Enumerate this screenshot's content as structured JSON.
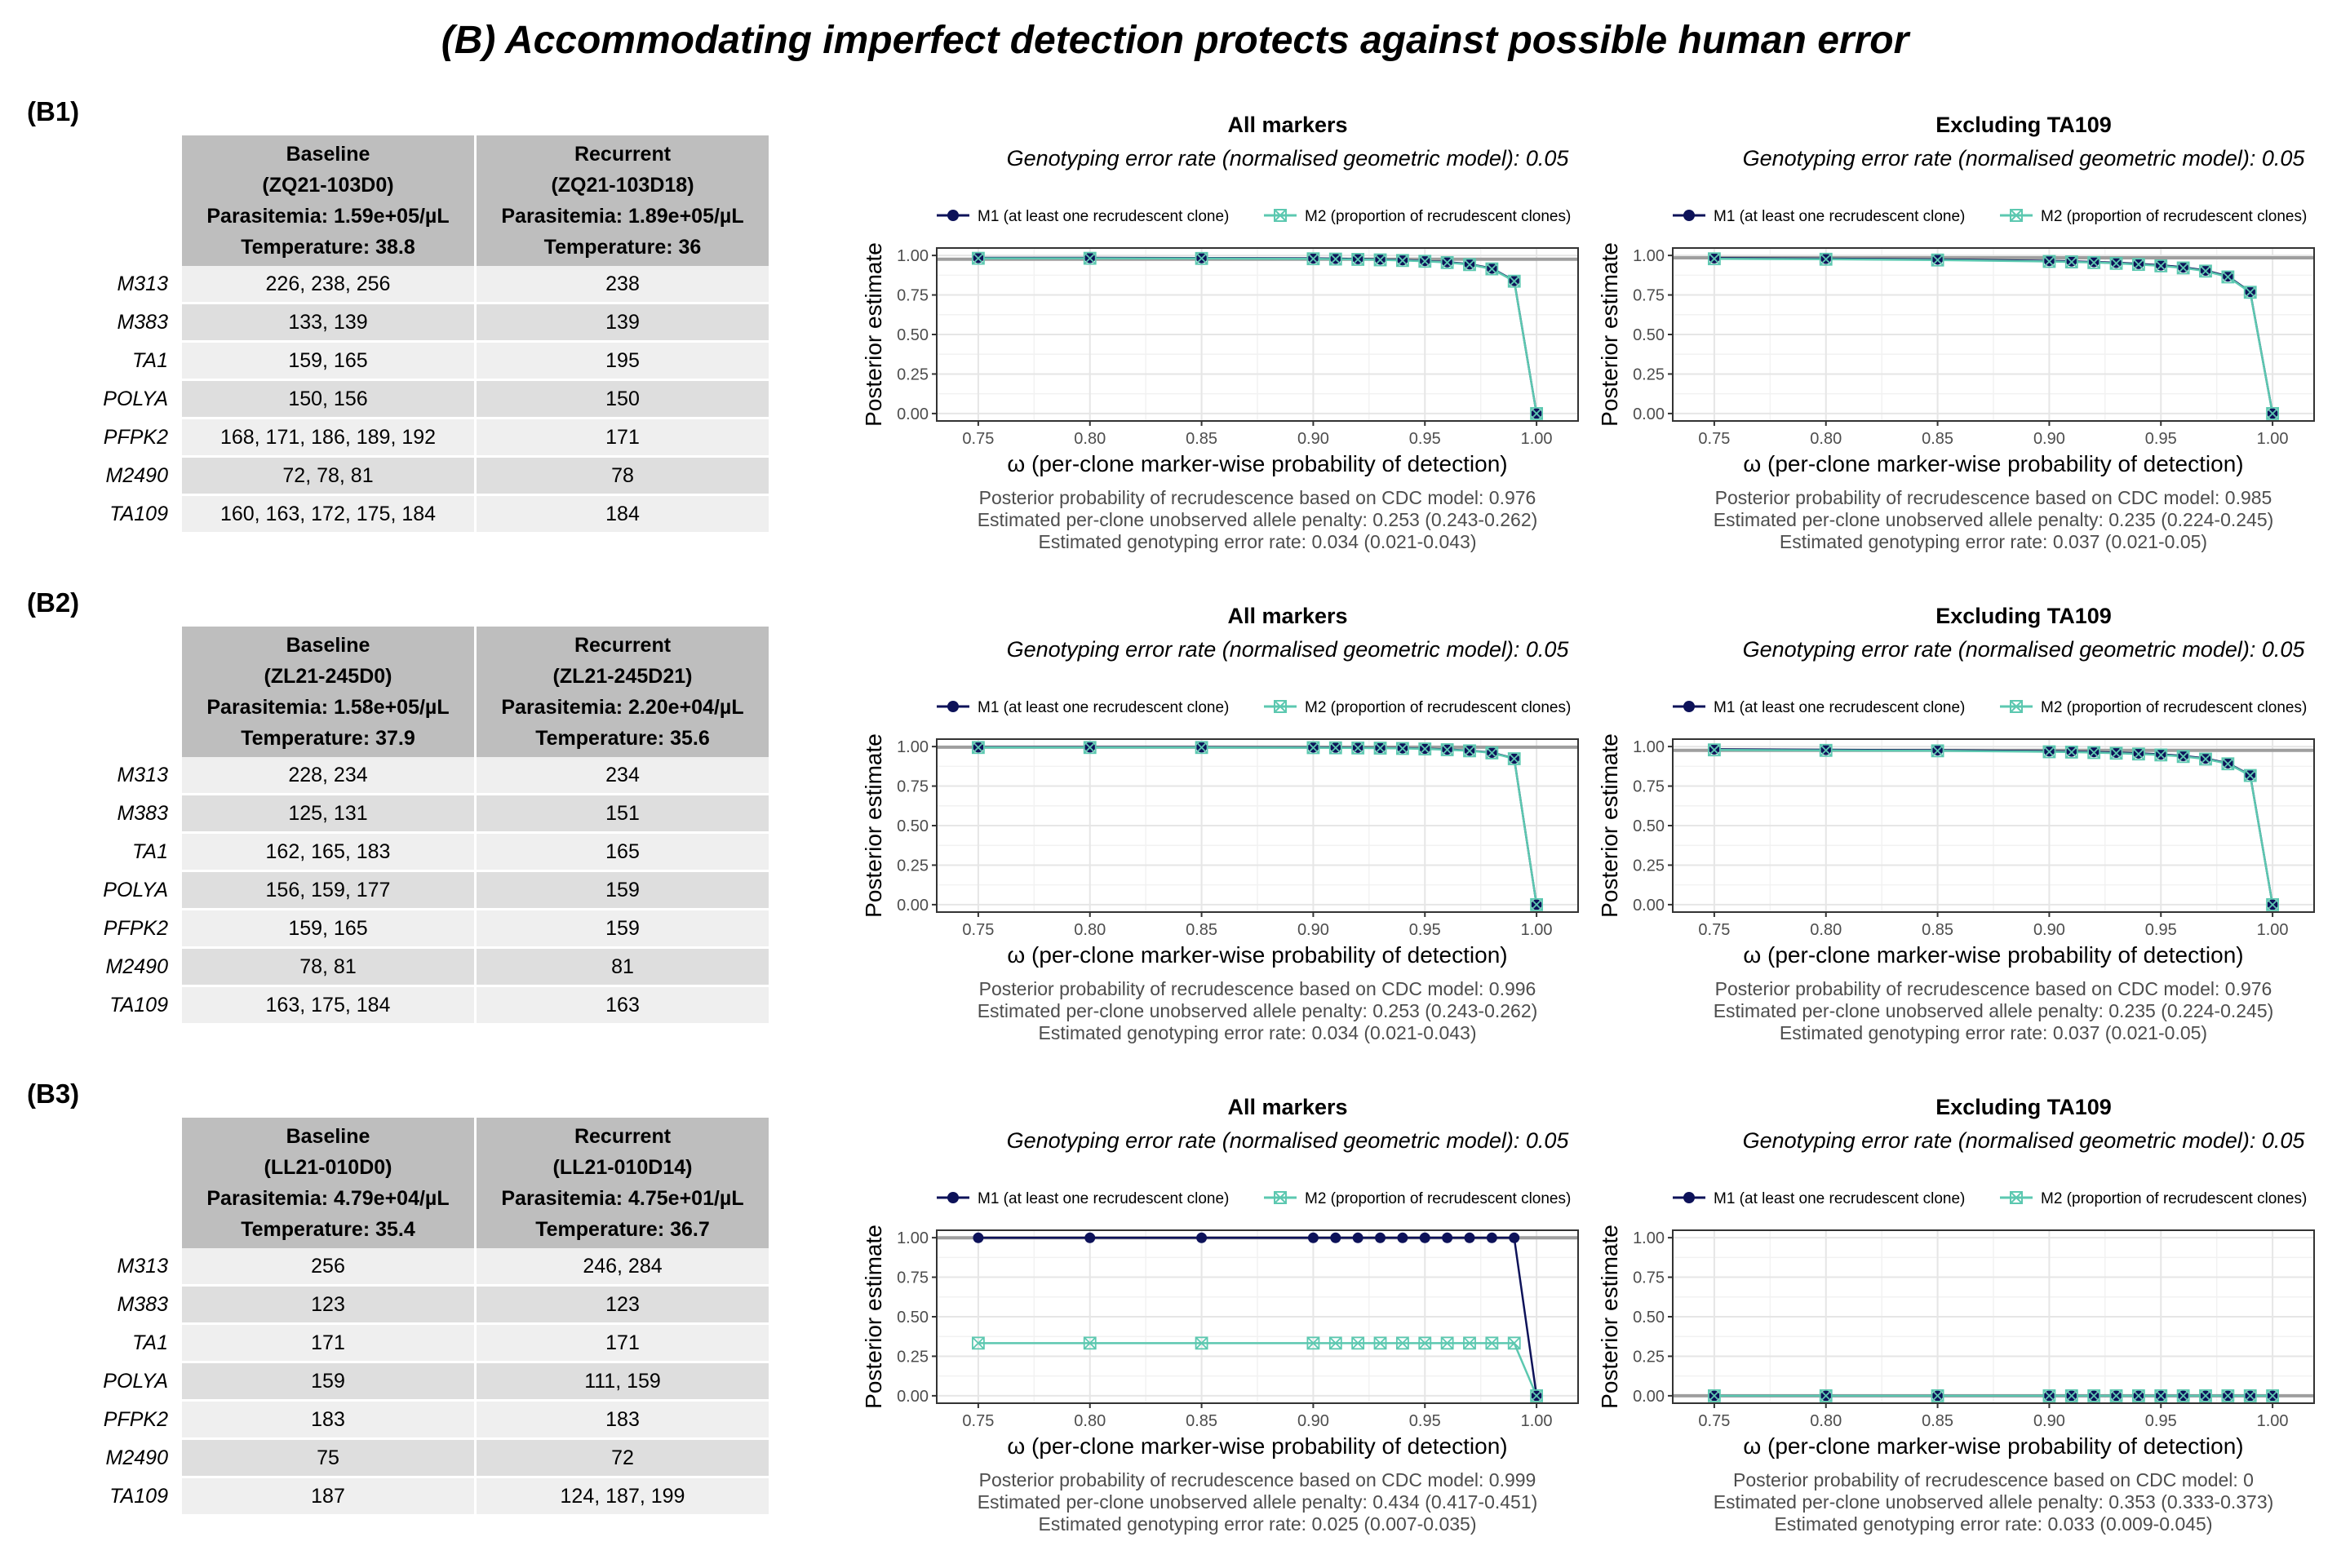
{
  "title": "(B) Accommodating imperfect detection protects against possible human error",
  "colors": {
    "m1": "#0d1259",
    "m2": "#5cc8b0",
    "refline": "#9e9e9e",
    "grid_major": "#e6e6e6",
    "grid_minor": "#f2f2f2",
    "header_bg": "#bebebe"
  },
  "common": {
    "legend_m1": "M1 (at least one recrudescent clone)",
    "legend_m2": "M2 (proportion of recrudescent clones)",
    "ylabel": "Posterior estimate",
    "xlabel": "ω (per-clone marker-wise probability of detection)",
    "subtitle": "Genotyping error rate (normalised geometric model): 0.05",
    "xticks": [
      "0.75",
      "0.80",
      "0.85",
      "0.90",
      "0.95",
      "1.00"
    ],
    "yticks": [
      "0.00",
      "0.25",
      "0.50",
      "0.75",
      "1.00"
    ]
  },
  "panels": [
    {
      "label": "(B1)",
      "table": {
        "headers": [
          [
            "Baseline",
            "(ZQ21-103D0)",
            "Parasitemia: 1.59e+05/µL",
            "Temperature: 38.8"
          ],
          [
            "Recurrent",
            "(ZQ21-103D18)",
            "Parasitemia: 1.89e+05/µL",
            "Temperature: 36"
          ]
        ],
        "rows": [
          [
            "M313",
            "226, 238, 256",
            "238"
          ],
          [
            "M383",
            "133, 139",
            "139"
          ],
          [
            "TA1",
            "159, 165",
            "195"
          ],
          [
            "POLYA",
            "150, 156",
            "150"
          ],
          [
            "PFPK2",
            "168, 171, 186, 189, 192",
            "171"
          ],
          [
            "M2490",
            "72, 78, 81",
            "78"
          ],
          [
            "TA109",
            "160, 163, 172, 175, 184",
            "184"
          ]
        ]
      }
    },
    {
      "label": "(B2)",
      "table": {
        "headers": [
          [
            "Baseline",
            "(ZL21-245D0)",
            "Parasitemia: 1.58e+05/µL",
            "Temperature: 37.9"
          ],
          [
            "Recurrent",
            "(ZL21-245D21)",
            "Parasitemia: 2.20e+04/µL",
            "Temperature: 35.6"
          ]
        ],
        "rows": [
          [
            "M313",
            "228, 234",
            "234"
          ],
          [
            "M383",
            "125, 131",
            "151"
          ],
          [
            "TA1",
            "162, 165, 183",
            "165"
          ],
          [
            "POLYA",
            "156, 159, 177",
            "159"
          ],
          [
            "PFPK2",
            "159, 165",
            "159"
          ],
          [
            "M2490",
            "78, 81",
            "81"
          ],
          [
            "TA109",
            "163, 175, 184",
            "163"
          ]
        ]
      }
    },
    {
      "label": "(B3)",
      "table": {
        "headers": [
          [
            "Baseline",
            "(LL21-010D0)",
            "Parasitemia: 4.79e+04/µL",
            "Temperature: 35.4"
          ],
          [
            "Recurrent",
            "(LL21-010D14)",
            "Parasitemia: 4.75e+01/µL",
            "Temperature: 36.7"
          ]
        ],
        "rows": [
          [
            "M313",
            "256",
            "246, 284"
          ],
          [
            "M383",
            "123",
            "123"
          ],
          [
            "TA1",
            "171",
            "171"
          ],
          [
            "POLYA",
            "159",
            "111, 159"
          ],
          [
            "PFPK2",
            "183",
            "183"
          ],
          [
            "M2490",
            "75",
            "72"
          ],
          [
            "TA109",
            "187",
            "124, 187, 199"
          ]
        ]
      }
    }
  ],
  "chart_data": [
    {
      "type": "line",
      "panel": "B1",
      "title": "All markers",
      "x": [
        0.75,
        0.8,
        0.85,
        0.9,
        0.91,
        0.92,
        0.93,
        0.94,
        0.95,
        0.96,
        0.97,
        0.98,
        0.99,
        1.0
      ],
      "series": [
        {
          "name": "M1 (at least one recrudescent clone)",
          "values": [
            0.985,
            0.985,
            0.984,
            0.982,
            0.98,
            0.978,
            0.975,
            0.971,
            0.966,
            0.958,
            0.945,
            0.918,
            0.84,
            0.0
          ]
        },
        {
          "name": "M2 (proportion of recrudescent clones)",
          "values": [
            0.982,
            0.982,
            0.981,
            0.979,
            0.977,
            0.975,
            0.972,
            0.968,
            0.963,
            0.955,
            0.942,
            0.915,
            0.837,
            0.0
          ]
        }
      ],
      "ylim": [
        0,
        1
      ],
      "xlim": [
        0.75,
        1.0
      ],
      "ref_line": 0.976,
      "footer": [
        "Posterior probability of recrudescence based on CDC model: 0.976",
        "Estimated per-clone unobserved allele penalty: 0.253 (0.243-0.262)",
        "Estimated genotyping error rate: 0.034 (0.021-0.043)"
      ]
    },
    {
      "type": "line",
      "panel": "B1",
      "title": "Excluding TA109",
      "x": [
        0.75,
        0.8,
        0.85,
        0.9,
        0.91,
        0.92,
        0.93,
        0.94,
        0.95,
        0.96,
        0.97,
        0.98,
        0.99,
        1.0
      ],
      "series": [
        {
          "name": "M1 (at least one recrudescent clone)",
          "values": [
            0.983,
            0.98,
            0.975,
            0.966,
            0.963,
            0.959,
            0.954,
            0.947,
            0.938,
            0.925,
            0.905,
            0.868,
            0.77,
            0.0
          ]
        },
        {
          "name": "M2 (proportion of recrudescent clones)",
          "values": [
            0.979,
            0.976,
            0.971,
            0.962,
            0.959,
            0.955,
            0.95,
            0.943,
            0.934,
            0.921,
            0.901,
            0.864,
            0.767,
            0.0
          ]
        }
      ],
      "ylim": [
        0,
        1
      ],
      "xlim": [
        0.75,
        1.0
      ],
      "ref_line": 0.985,
      "footer": [
        "Posterior probability of recrudescence based on CDC model: 0.985",
        "Estimated per-clone unobserved allele penalty: 0.235 (0.224-0.245)",
        "Estimated genotyping error rate: 0.037 (0.021-0.05)"
      ]
    },
    {
      "type": "line",
      "panel": "B2",
      "title": "All markers",
      "x": [
        0.75,
        0.8,
        0.85,
        0.9,
        0.91,
        0.92,
        0.93,
        0.94,
        0.95,
        0.96,
        0.97,
        0.98,
        0.99,
        1.0
      ],
      "series": [
        {
          "name": "M1 (at least one recrudescent clone)",
          "values": [
            0.996,
            0.996,
            0.996,
            0.995,
            0.994,
            0.993,
            0.992,
            0.99,
            0.987,
            0.982,
            0.975,
            0.962,
            0.925,
            0.0
          ]
        },
        {
          "name": "M2 (proportion of recrudescent clones)",
          "values": [
            0.994,
            0.994,
            0.994,
            0.993,
            0.992,
            0.991,
            0.99,
            0.988,
            0.985,
            0.98,
            0.973,
            0.96,
            0.923,
            0.0
          ]
        }
      ],
      "ylim": [
        0,
        1
      ],
      "xlim": [
        0.75,
        1.0
      ],
      "ref_line": 0.996,
      "footer": [
        "Posterior probability of recrudescence based on CDC model: 0.996",
        "Estimated per-clone unobserved allele penalty: 0.253 (0.243-0.262)",
        "Estimated genotyping error rate: 0.034 (0.021-0.043)"
      ]
    },
    {
      "type": "line",
      "panel": "B2",
      "title": "Excluding TA109",
      "x": [
        0.75,
        0.8,
        0.85,
        0.9,
        0.91,
        0.92,
        0.93,
        0.94,
        0.95,
        0.96,
        0.97,
        0.98,
        0.99,
        1.0
      ],
      "series": [
        {
          "name": "M1 (at least one recrudescent clone)",
          "values": [
            0.983,
            0.98,
            0.977,
            0.971,
            0.969,
            0.966,
            0.962,
            0.957,
            0.951,
            0.941,
            0.925,
            0.895,
            0.82,
            0.0
          ]
        },
        {
          "name": "M2 (proportion of recrudescent clones)",
          "values": [
            0.979,
            0.976,
            0.973,
            0.967,
            0.965,
            0.962,
            0.958,
            0.953,
            0.947,
            0.937,
            0.921,
            0.891,
            0.817,
            0.0
          ]
        }
      ],
      "ylim": [
        0,
        1
      ],
      "xlim": [
        0.75,
        1.0
      ],
      "ref_line": 0.976,
      "footer": [
        "Posterior probability of recrudescence based on CDC model: 0.976",
        "Estimated per-clone unobserved allele penalty: 0.235 (0.224-0.245)",
        "Estimated genotyping error rate: 0.037 (0.021-0.05)"
      ]
    },
    {
      "type": "line",
      "panel": "B3",
      "title": "All markers",
      "x": [
        0.75,
        0.8,
        0.85,
        0.9,
        0.91,
        0.92,
        0.93,
        0.94,
        0.95,
        0.96,
        0.97,
        0.98,
        0.99,
        1.0
      ],
      "series": [
        {
          "name": "M1 (at least one recrudescent clone)",
          "values": [
            0.999,
            0.999,
            0.999,
            0.999,
            0.999,
            0.999,
            0.999,
            0.999,
            0.999,
            0.999,
            0.999,
            0.999,
            0.999,
            0.0
          ]
        },
        {
          "name": "M2 (proportion of recrudescent clones)",
          "values": [
            0.333,
            0.333,
            0.333,
            0.333,
            0.333,
            0.333,
            0.333,
            0.333,
            0.333,
            0.333,
            0.333,
            0.333,
            0.333,
            0.0
          ]
        }
      ],
      "ylim": [
        0,
        1
      ],
      "xlim": [
        0.75,
        1.0
      ],
      "ref_line": 0.999,
      "footer": [
        "Posterior probability of recrudescence based on CDC model: 0.999",
        "Estimated per-clone unobserved allele penalty: 0.434 (0.417-0.451)",
        "Estimated genotyping error rate: 0.025 (0.007-0.035)"
      ]
    },
    {
      "type": "line",
      "panel": "B3",
      "title": "Excluding TA109",
      "x": [
        0.75,
        0.8,
        0.85,
        0.9,
        0.91,
        0.92,
        0.93,
        0.94,
        0.95,
        0.96,
        0.97,
        0.98,
        0.99,
        1.0
      ],
      "series": [
        {
          "name": "M1 (at least one recrudescent clone)",
          "values": [
            0,
            0,
            0,
            0,
            0,
            0,
            0,
            0,
            0,
            0,
            0,
            0,
            0,
            0
          ]
        },
        {
          "name": "M2 (proportion of recrudescent clones)",
          "values": [
            0,
            0,
            0,
            0,
            0,
            0,
            0,
            0,
            0,
            0,
            0,
            0,
            0,
            0
          ]
        }
      ],
      "ylim": [
        0,
        1
      ],
      "xlim": [
        0.75,
        1.0
      ],
      "ref_line": 0.0,
      "footer": [
        "Posterior probability of recrudescence based on CDC model: 0",
        "Estimated per-clone unobserved allele penalty: 0.353 (0.333-0.373)",
        "Estimated genotyping error rate: 0.033 (0.009-0.045)"
      ]
    }
  ]
}
